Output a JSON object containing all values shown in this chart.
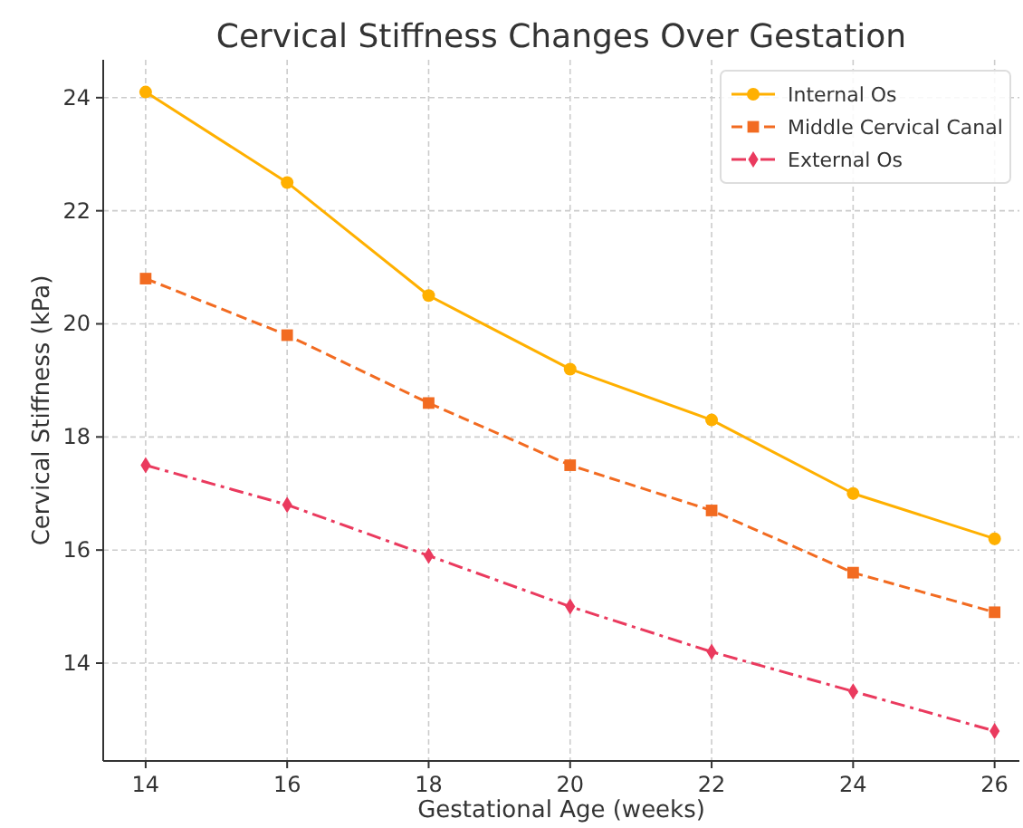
{
  "chart_data": {
    "type": "line",
    "title": "Cervical Stiffness Changes Over Gestation",
    "xlabel": "Gestational Age (weeks)",
    "ylabel": "Cervical Stiffness (kPa)",
    "x": [
      14,
      16,
      18,
      20,
      22,
      24,
      26
    ],
    "series": [
      {
        "name": "Internal Os",
        "color": "#ffb000",
        "values": [
          24.1,
          22.5,
          20.5,
          19.2,
          18.3,
          17.0,
          16.2
        ],
        "marker": "circle",
        "line_style": "solid"
      },
      {
        "name": "Middle Cervical Canal",
        "color": "#f26b21",
        "values": [
          20.8,
          19.8,
          18.6,
          17.5,
          16.7,
          15.6,
          14.9
        ],
        "marker": "square",
        "line_style": "dashed"
      },
      {
        "name": "External Os",
        "color": "#ea3a5e",
        "values": [
          17.5,
          16.8,
          15.9,
          15.0,
          14.2,
          13.5,
          12.8
        ],
        "marker": "diamond",
        "line_style": "dashdot"
      }
    ],
    "xlim": [
      13.4,
      26.35
    ],
    "xticks": [
      14,
      16,
      18,
      20,
      22,
      24,
      26
    ],
    "ylim": [
      12.27,
      24.67
    ],
    "yticks": [
      14,
      16,
      18,
      20,
      22,
      24
    ],
    "grid": true,
    "legend": "top right"
  }
}
